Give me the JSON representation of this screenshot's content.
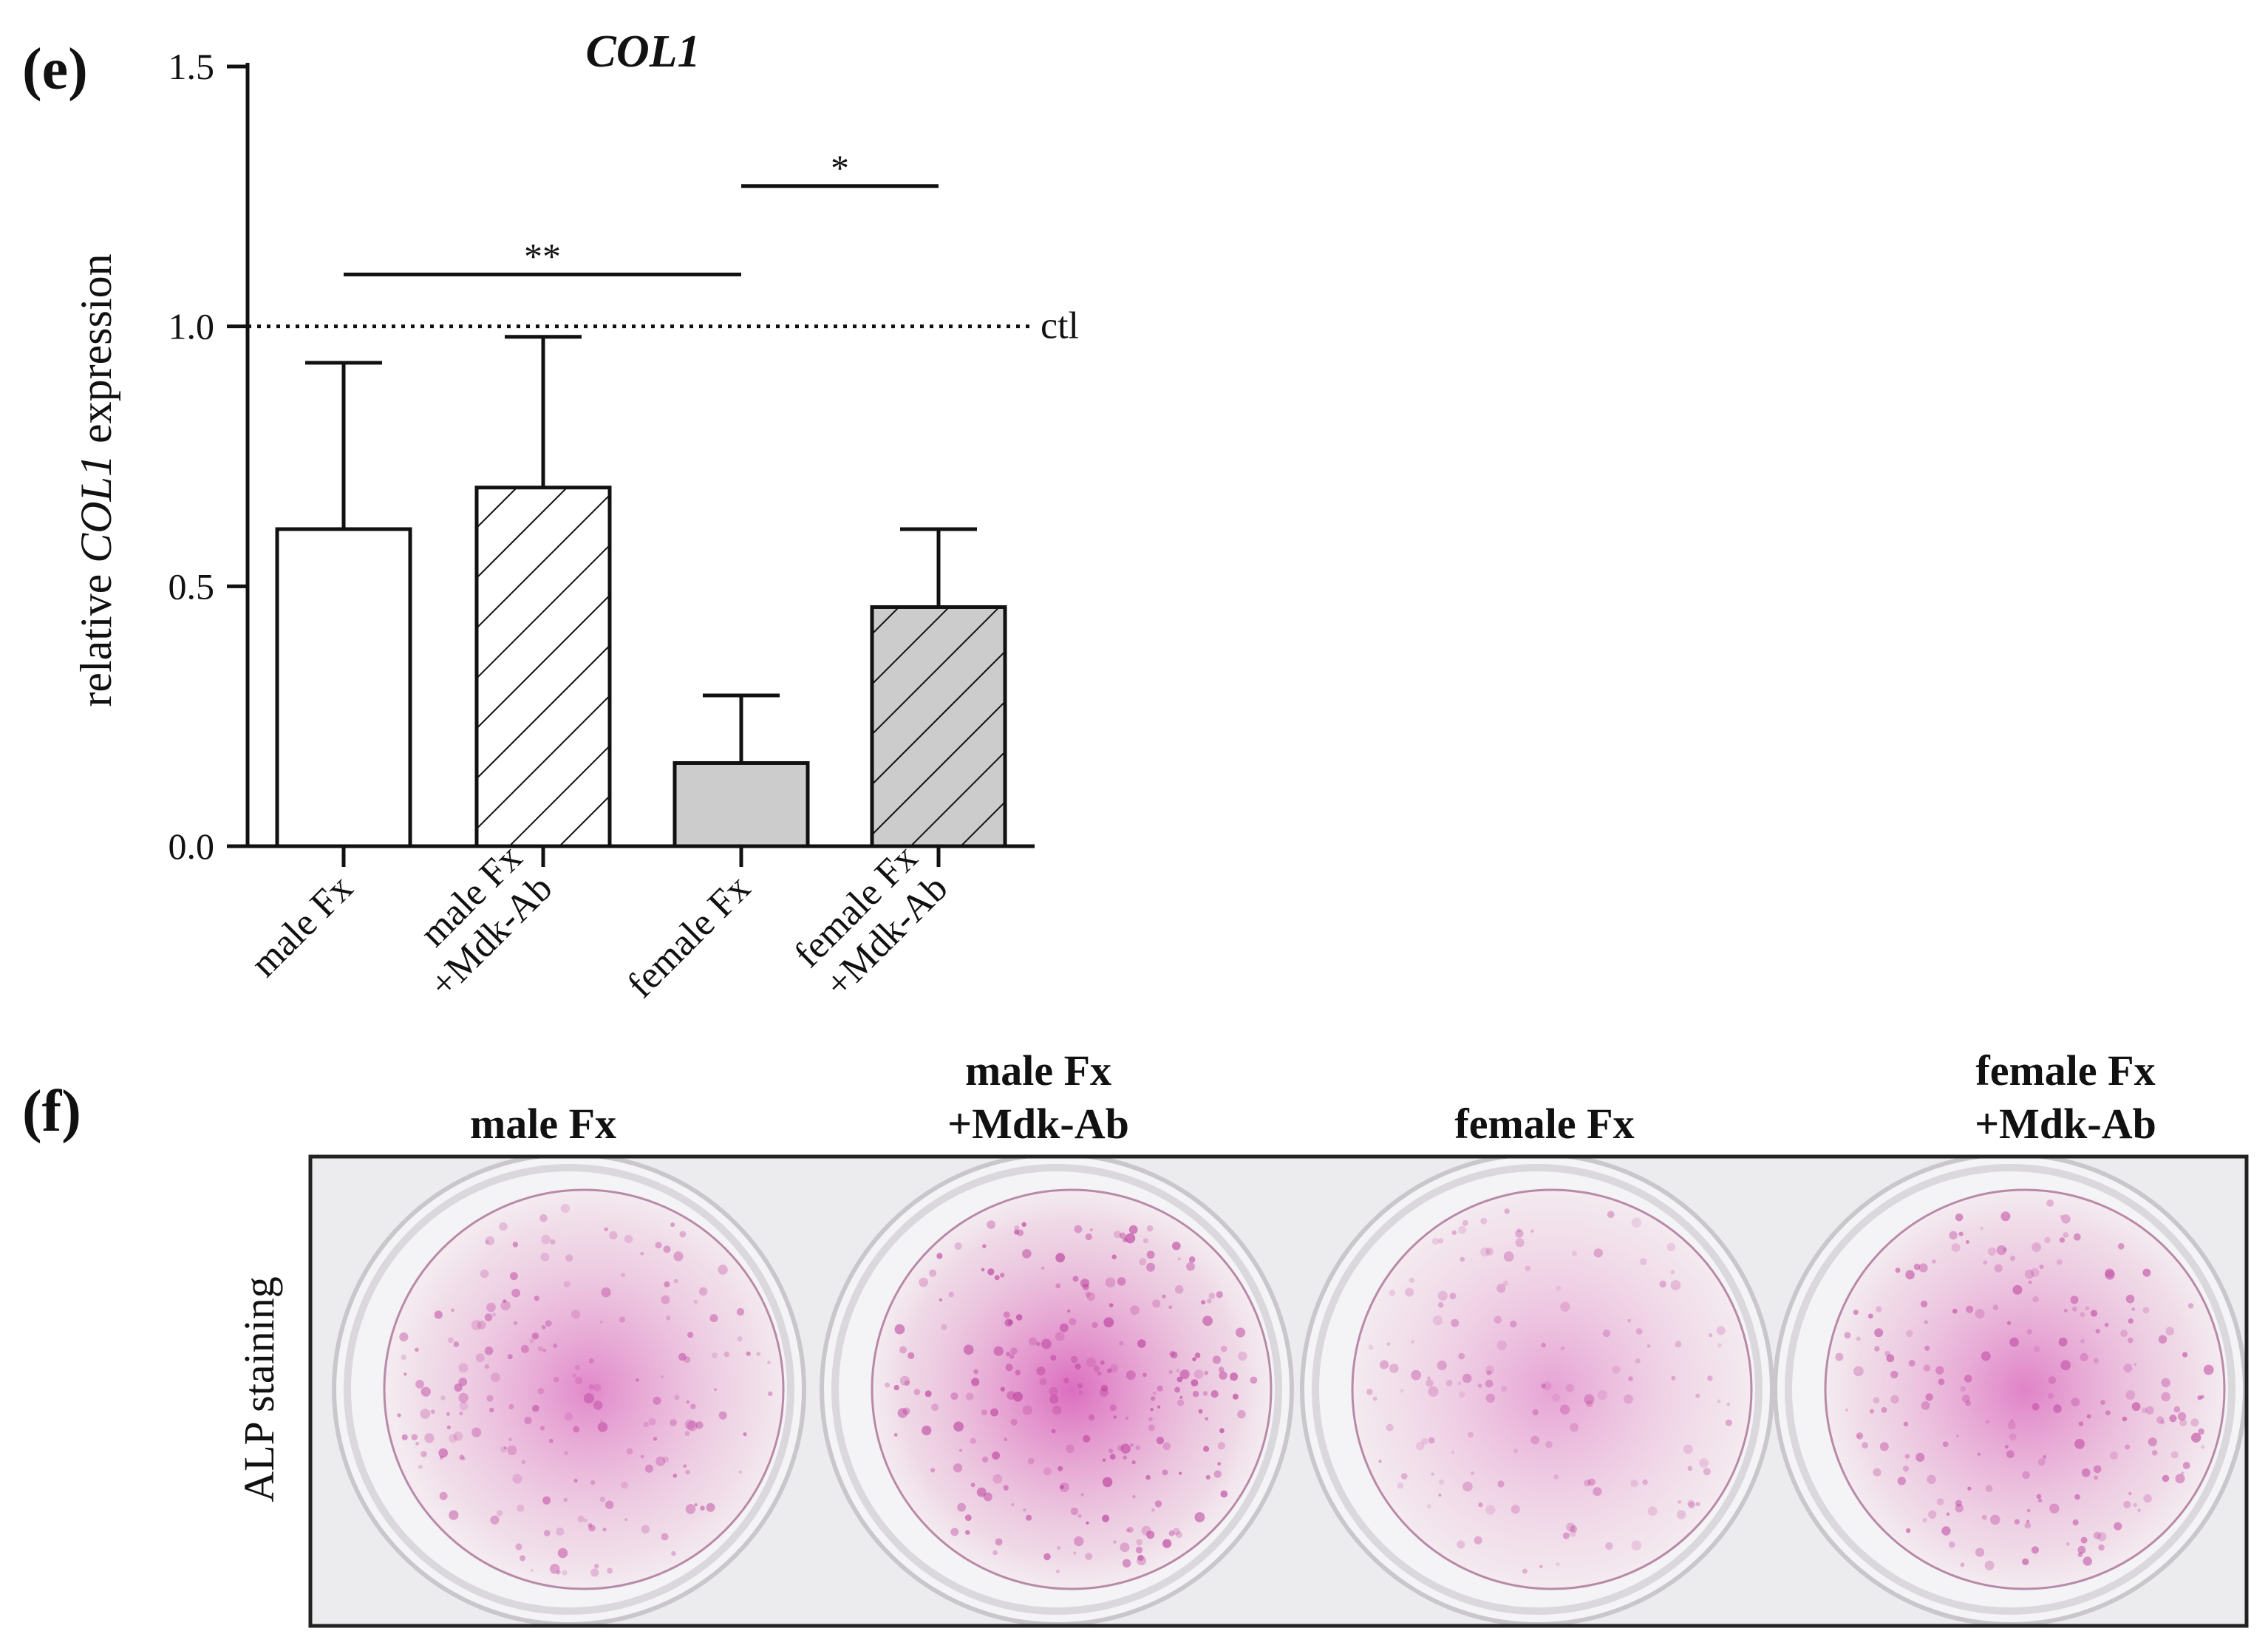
{
  "panel_e": {
    "letter": "(e)",
    "ctl_label": "ctl",
    "yaxis_label_prefix": "relative ",
    "yaxis_label_gene": "COL1",
    "yaxis_label_suffix": " expression"
  },
  "panel_f": {
    "letter": "(f)",
    "side_label": "ALP staining",
    "column_headings": [
      [
        "male Fx"
      ],
      [
        "male Fx",
        "+Mdk-Ab"
      ],
      [
        "female Fx"
      ],
      [
        "female Fx",
        "+Mdk-Ab"
      ]
    ],
    "wells": [
      {
        "intensity": 0.75,
        "shift": 0.15
      },
      {
        "intensity": 0.95,
        "shift": 0.0
      },
      {
        "intensity": 0.55,
        "shift": 0.0
      },
      {
        "intensity": 0.8,
        "shift": 0.0
      }
    ]
  },
  "chart_data": {
    "type": "bar",
    "title": "COL1",
    "ylabel": "relative COL1 expression",
    "xlabel": "",
    "ylim": [
      0,
      1.5
    ],
    "yticks": [
      0.0,
      0.5,
      1.0,
      1.5
    ],
    "ytick_labels": [
      "0.0",
      "0.5",
      "1.0",
      "1.5"
    ],
    "categories": [
      [
        "male Fx"
      ],
      [
        "male Fx",
        "+Mdk-Ab"
      ],
      [
        "female Fx"
      ],
      [
        "female Fx",
        "+Mdk-Ab"
      ]
    ],
    "values": [
      0.61,
      0.69,
      0.16,
      0.46
    ],
    "errors": [
      0.32,
      0.29,
      0.13,
      0.15
    ],
    "fills": [
      "#ffffff",
      "#ffffff",
      "#cccccc",
      "#cccccc"
    ],
    "hatched": [
      false,
      true,
      false,
      true
    ],
    "reference_line": {
      "y": 1.0,
      "label": "ctl",
      "style": "dotted"
    },
    "significance": [
      {
        "from": 0,
        "to": 2,
        "y": 1.1,
        "label": "**"
      },
      {
        "from": 2,
        "to": 3,
        "y": 1.27,
        "label": "*"
      }
    ]
  }
}
